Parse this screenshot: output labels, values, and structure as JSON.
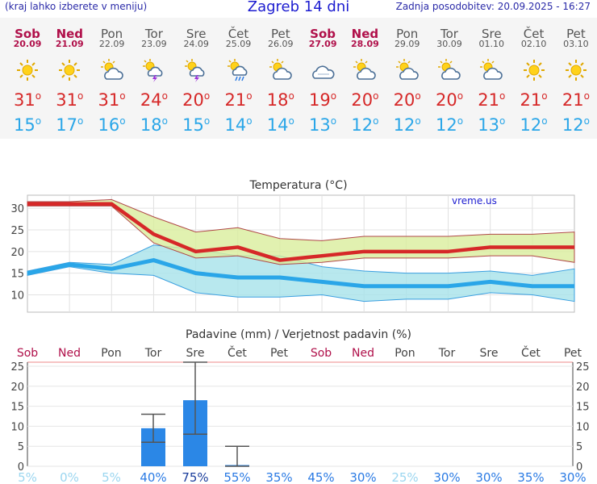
{
  "header": {
    "menu_hint": "(kraj lahko izberete v meniju)",
    "title": "Zagreb 14 dni",
    "updated": "Zadnja posodobitev: 20.09.2025 - 16:27"
  },
  "degree": "o",
  "days": [
    {
      "name": "Sob",
      "date": "20.09",
      "weekend": true,
      "icon": "sun-icon",
      "tmax": "31",
      "tmin": "15"
    },
    {
      "name": "Ned",
      "date": "21.09",
      "weekend": true,
      "icon": "sun-icon",
      "tmax": "31",
      "tmin": "17"
    },
    {
      "name": "Pon",
      "date": "22.09",
      "weekend": false,
      "icon": "sun-cloud-icon",
      "tmax": "31",
      "tmin": "16"
    },
    {
      "name": "Tor",
      "date": "23.09",
      "weekend": false,
      "icon": "sun-storm-icon",
      "tmax": "24",
      "tmin": "18"
    },
    {
      "name": "Sre",
      "date": "24.09",
      "weekend": false,
      "icon": "sun-storm-icon",
      "tmax": "20",
      "tmin": "15"
    },
    {
      "name": "Čet",
      "date": "25.09",
      "weekend": false,
      "icon": "sun-rain-icon",
      "tmax": "21",
      "tmin": "14"
    },
    {
      "name": "Pet",
      "date": "26.09",
      "weekend": false,
      "icon": "sun-cloud-icon",
      "tmax": "18",
      "tmin": "14"
    },
    {
      "name": "Sob",
      "date": "27.09",
      "weekend": true,
      "icon": "cloud-icon",
      "tmax": "19",
      "tmin": "13"
    },
    {
      "name": "Ned",
      "date": "28.09",
      "weekend": true,
      "icon": "sun-cloud-icon",
      "tmax": "20",
      "tmin": "12"
    },
    {
      "name": "Pon",
      "date": "29.09",
      "weekend": false,
      "icon": "sun-cloud-icon",
      "tmax": "20",
      "tmin": "12"
    },
    {
      "name": "Tor",
      "date": "30.09",
      "weekend": false,
      "icon": "sun-cloud-icon",
      "tmax": "20",
      "tmin": "12"
    },
    {
      "name": "Sre",
      "date": "01.10",
      "weekend": false,
      "icon": "sun-cloud-icon",
      "tmax": "21",
      "tmin": "13"
    },
    {
      "name": "Čet",
      "date": "02.10",
      "weekend": false,
      "icon": "sun-icon",
      "tmax": "21",
      "tmin": "12"
    },
    {
      "name": "Pet",
      "date": "03.10",
      "weekend": false,
      "icon": "sun-icon",
      "tmax": "21",
      "tmin": "12"
    }
  ],
  "colors": {
    "max": "#d62828",
    "min": "#2aa6e8",
    "weekend": "#b0104a",
    "bar": "#2b87e6"
  },
  "chart_data": [
    {
      "type": "line",
      "title": "Temperatura (°C)",
      "watermark": "vreme.us",
      "ylim": [
        6,
        33
      ],
      "yticks": [
        10,
        15,
        20,
        25,
        30
      ],
      "series": [
        {
          "role": "max",
          "values": [
            31,
            31,
            31,
            24,
            20,
            21,
            18,
            19,
            20,
            20,
            20,
            21,
            21,
            21
          ]
        },
        {
          "role": "max_range_low",
          "values": [
            30.5,
            30.5,
            30.5,
            22,
            18.5,
            19,
            17,
            17.5,
            18.5,
            18.5,
            18.5,
            19,
            19,
            17.5
          ]
        },
        {
          "role": "max_range_high",
          "values": [
            31.5,
            31.5,
            32,
            28,
            24.5,
            25.5,
            23,
            22.5,
            23.5,
            23.5,
            23.5,
            24,
            24,
            24.5
          ]
        },
        {
          "role": "min",
          "values": [
            15,
            17,
            16,
            18,
            15,
            14,
            14,
            13,
            12,
            12,
            12,
            13,
            12,
            12
          ]
        },
        {
          "role": "min_range_low",
          "values": [
            14.5,
            16.5,
            15,
            14.5,
            10.5,
            9.5,
            9.5,
            10,
            8.5,
            9,
            9,
            10.5,
            10,
            8.5
          ]
        },
        {
          "role": "min_range_high",
          "values": [
            15.5,
            17.5,
            17,
            21.5,
            20.5,
            19,
            19,
            16.5,
            15.5,
            15,
            15,
            15.5,
            14.5,
            16
          ]
        }
      ]
    },
    {
      "type": "bar",
      "title": "Padavine (mm) / Verjetnost padavin (%)",
      "ylim": [
        0,
        26
      ],
      "yticks": [
        0,
        5,
        10,
        15,
        20,
        25
      ],
      "values": [
        0,
        0,
        0,
        9.5,
        16.5,
        0.3,
        0,
        0,
        0,
        0,
        0,
        0,
        0,
        0
      ],
      "error_low": [
        null,
        null,
        null,
        6,
        8,
        0,
        null,
        null,
        null,
        null,
        null,
        null,
        null,
        null
      ],
      "error_high": [
        null,
        null,
        null,
        13,
        26,
        5,
        null,
        null,
        null,
        null,
        null,
        null,
        null,
        null
      ],
      "probability": [
        "5%",
        "0%",
        "5%",
        "40%",
        "75%",
        "55%",
        "35%",
        "45%",
        "30%",
        "25%",
        "30%",
        "30%",
        "35%",
        "30%"
      ]
    }
  ]
}
